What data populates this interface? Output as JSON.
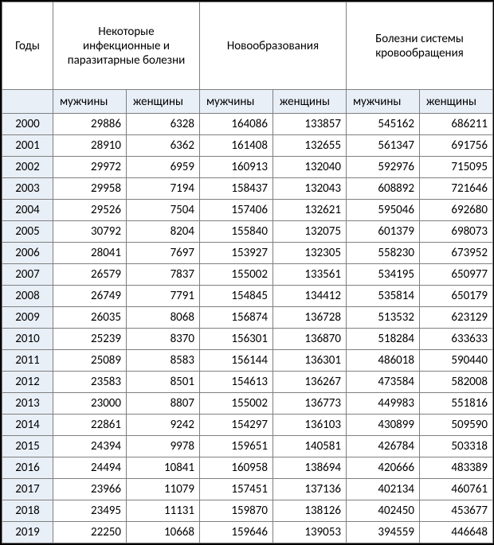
{
  "table": {
    "type": "table",
    "background_color": "#ffffff",
    "border_color": "#7f7f7f",
    "outer_border_color": "#000000",
    "header_shade": "#e9eff7",
    "year_col_shade": "#e9eff7",
    "font_family": "Calibri",
    "font_size_pt": 11,
    "header1": {
      "c1": "Годы",
      "c2": "Некоторые инфекционные и паразитарные болезни",
      "c3": "Новообразования",
      "c4": "Болезни системы кровообращения"
    },
    "header2": {
      "blank": "",
      "m1": "мужчины",
      "f1": "женщины",
      "m2": "мужчины",
      "f2": "женщины",
      "m3": "мужчины",
      "f3": "женщины"
    },
    "rows": [
      {
        "year": "2000",
        "v1": "29886",
        "v2": "6328",
        "v3": "164086",
        "v4": "133857",
        "v5": "545162",
        "v6": "686211"
      },
      {
        "year": "2001",
        "v1": "28910",
        "v2": "6362",
        "v3": "161408",
        "v4": "132655",
        "v5": "561347",
        "v6": "691756"
      },
      {
        "year": "2002",
        "v1": "29972",
        "v2": "6959",
        "v3": "160913",
        "v4": "132040",
        "v5": "592976",
        "v6": "715095"
      },
      {
        "year": "2003",
        "v1": "29958",
        "v2": "7194",
        "v3": "158437",
        "v4": "132043",
        "v5": "608892",
        "v6": "721646"
      },
      {
        "year": "2004",
        "v1": "29526",
        "v2": "7504",
        "v3": "157406",
        "v4": "132621",
        "v5": "595046",
        "v6": "692680"
      },
      {
        "year": "2005",
        "v1": "30792",
        "v2": "8204",
        "v3": "155840",
        "v4": "132075",
        "v5": "601379",
        "v6": "698073"
      },
      {
        "year": "2006",
        "v1": "28041",
        "v2": "7697",
        "v3": "153927",
        "v4": "132305",
        "v5": "558230",
        "v6": "673952"
      },
      {
        "year": "2007",
        "v1": "26579",
        "v2": "7837",
        "v3": "155002",
        "v4": "133561",
        "v5": "534195",
        "v6": "650977"
      },
      {
        "year": "2008",
        "v1": "26749",
        "v2": "7791",
        "v3": "154845",
        "v4": "134412",
        "v5": "535814",
        "v6": "650179"
      },
      {
        "year": "2009",
        "v1": "26035",
        "v2": "8068",
        "v3": "156874",
        "v4": "136728",
        "v5": "513532",
        "v6": "623129"
      },
      {
        "year": "2010",
        "v1": "25239",
        "v2": "8370",
        "v3": "156301",
        "v4": "136870",
        "v5": "518284",
        "v6": "633633"
      },
      {
        "year": "2011",
        "v1": "25089",
        "v2": "8583",
        "v3": "156144",
        "v4": "136301",
        "v5": "486018",
        "v6": "590440"
      },
      {
        "year": "2012",
        "v1": "23583",
        "v2": "8501",
        "v3": "154613",
        "v4": "136267",
        "v5": "473584",
        "v6": "582008"
      },
      {
        "year": "2013",
        "v1": "23000",
        "v2": "8807",
        "v3": "155002",
        "v4": "136773",
        "v5": "449983",
        "v6": "551816"
      },
      {
        "year": "2014",
        "v1": "22861",
        "v2": "9242",
        "v3": "154297",
        "v4": "136103",
        "v5": "430899",
        "v6": "509590"
      },
      {
        "year": "2015",
        "v1": "24394",
        "v2": "9978",
        "v3": "159651",
        "v4": "140581",
        "v5": "426784",
        "v6": "503318"
      },
      {
        "year": "2016",
        "v1": "24494",
        "v2": "10841",
        "v3": "160958",
        "v4": "138694",
        "v5": "420666",
        "v6": "483389"
      },
      {
        "year": "2017",
        "v1": "23966",
        "v2": "11079",
        "v3": "157451",
        "v4": "137136",
        "v5": "402134",
        "v6": "460761"
      },
      {
        "year": "2018",
        "v1": "23495",
        "v2": "11131",
        "v3": "159870",
        "v4": "138126",
        "v5": "402450",
        "v6": "453677"
      },
      {
        "year": "2019",
        "v1": "22250",
        "v2": "10668",
        "v3": "159646",
        "v4": "139053",
        "v5": "394559",
        "v6": "446648"
      }
    ]
  }
}
